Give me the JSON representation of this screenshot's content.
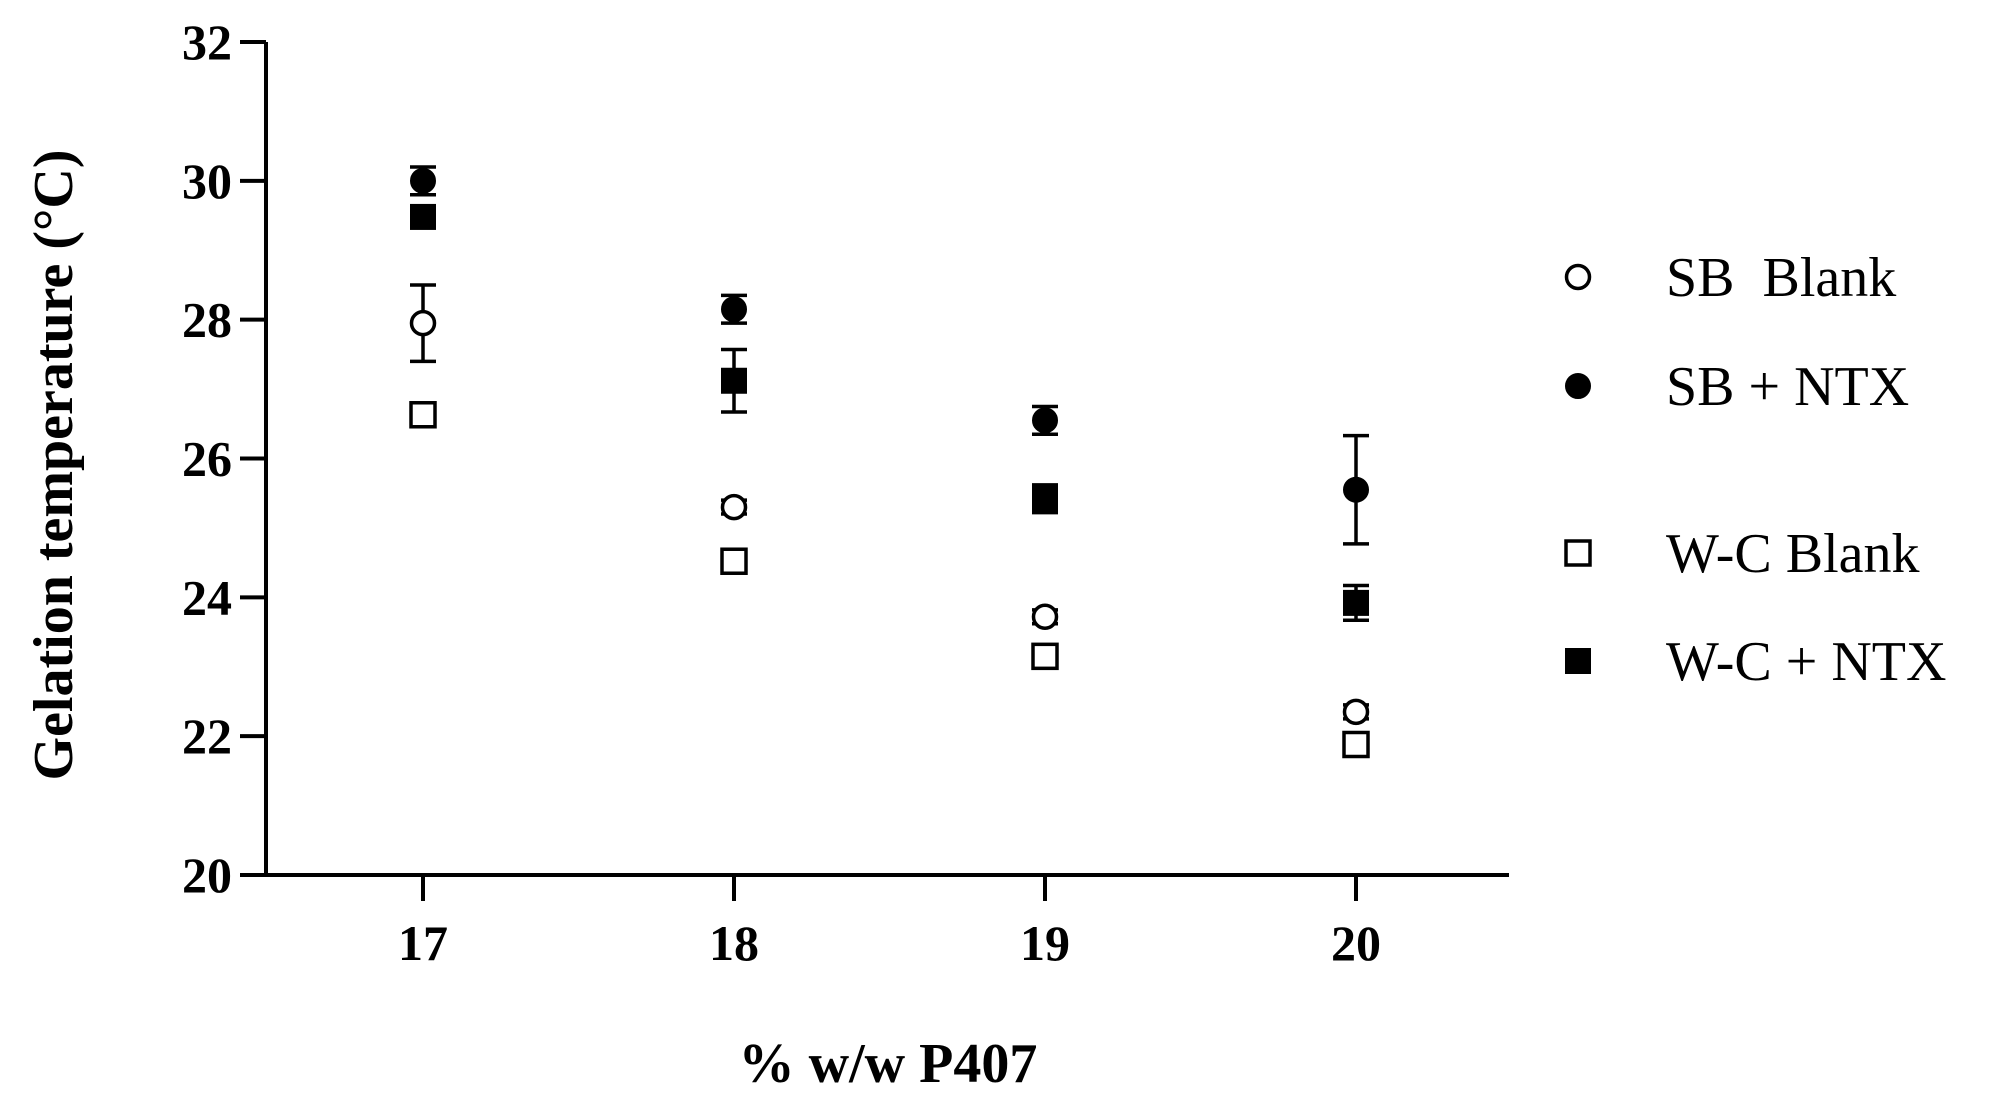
{
  "chart_data": {
    "type": "scatter",
    "title": "",
    "xlabel": "% w/w P407",
    "ylabel": "Gelation temperature (°C)",
    "x": [
      17,
      18,
      19,
      20
    ],
    "x_ticks": [
      "17",
      "18",
      "19",
      "20"
    ],
    "ylim": [
      20,
      32
    ],
    "y_ticks": [
      "20",
      "22",
      "24",
      "26",
      "28",
      "30",
      "32"
    ],
    "grid": false,
    "legend_position": "right",
    "series": [
      {
        "name": "SB  Blank",
        "marker": "open-circle",
        "values": [
          27.95,
          25.3,
          23.72,
          22.35
        ],
        "errors": [
          0.55,
          0.1,
          0.1,
          0.1
        ]
      },
      {
        "name": "SB + NTX",
        "marker": "filled-circle",
        "values": [
          30.0,
          28.15,
          26.55,
          25.55
        ],
        "errors": [
          0.2,
          0.2,
          0.2,
          0.78
        ]
      },
      {
        "name": "W-C Blank",
        "marker": "open-square",
        "values": [
          26.63,
          24.52,
          23.15,
          21.88
        ],
        "errors": [
          0.1,
          0.1,
          0.15,
          0.1
        ]
      },
      {
        "name": "W-C + NTX",
        "marker": "filled-square",
        "values": [
          29.48,
          27.12,
          25.42,
          23.92
        ],
        "errors": [
          0.1,
          0.45,
          0.2,
          0.25
        ]
      }
    ]
  }
}
